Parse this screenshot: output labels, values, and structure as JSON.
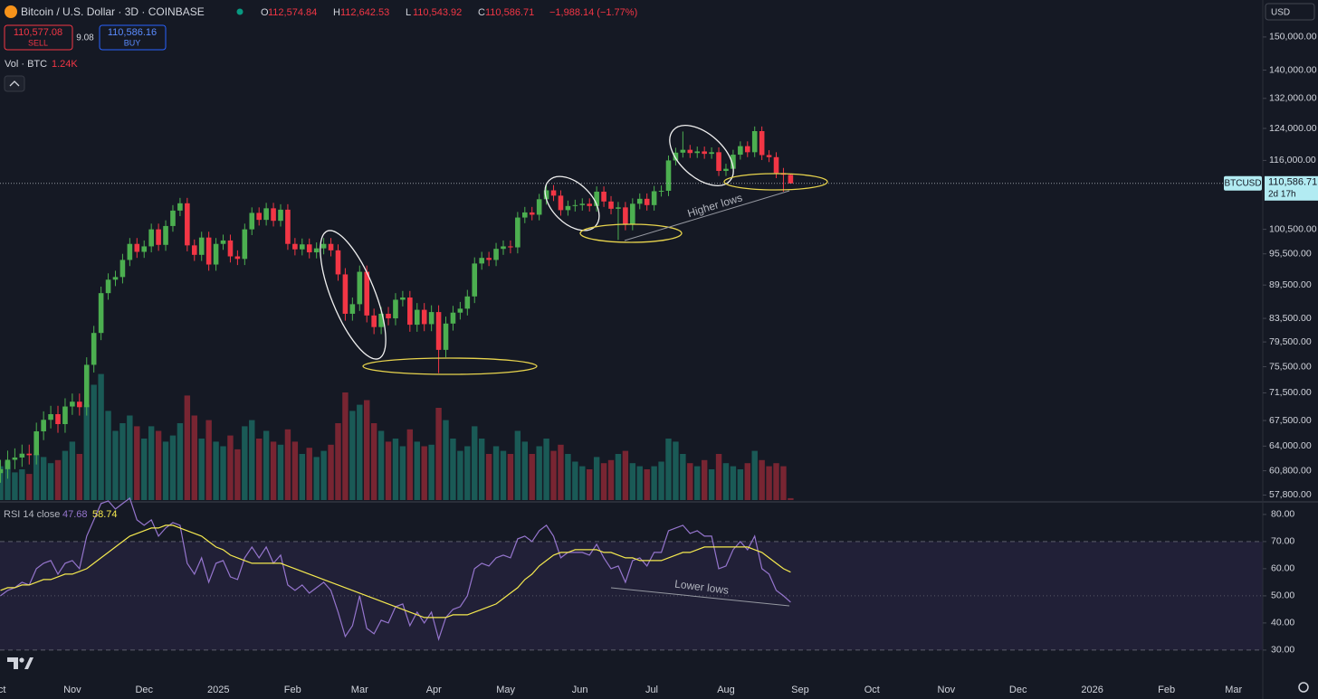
{
  "header": {
    "symbol": "Bitcoin / U.S. Dollar · 3D · COINBASE",
    "ohlc": [
      {
        "key": "O",
        "label": "112,574.84"
      },
      {
        "key": "H",
        "label": "112,642.53"
      },
      {
        "key": "L",
        "label": "110,543.92"
      },
      {
        "key": "C",
        "label": "110,586.71"
      }
    ],
    "change": "−1,988.14 (−1.77%)",
    "sell": {
      "price": "110,577.08",
      "label": "SELL"
    },
    "spread": "9.08",
    "buy": {
      "price": "110,586.16",
      "label": "BUY"
    },
    "currency": "USD",
    "ticker_tag": "BTCUSD",
    "countdown": "2d 17h"
  },
  "chart_data": {
    "type": "candlestick",
    "log_scale": true,
    "x": [
      1,
      4,
      7,
      10,
      13,
      16,
      19,
      22,
      25,
      28,
      31,
      34,
      37,
      40,
      43,
      46,
      49,
      52,
      55,
      58,
      61,
      64,
      67,
      70,
      73,
      76,
      79,
      82,
      85,
      88,
      91,
      94,
      97,
      100,
      103,
      106,
      109,
      112,
      115,
      118,
      121,
      124,
      127,
      130,
      133,
      136,
      139,
      142,
      145,
      148,
      151,
      154,
      157,
      160,
      163,
      166,
      169,
      172,
      175,
      178,
      181,
      184,
      187,
      190,
      193,
      196,
      199,
      202,
      205,
      208,
      211,
      214,
      217,
      220,
      223,
      226,
      229,
      232,
      235,
      238,
      241,
      244,
      247,
      250,
      253,
      256,
      259,
      262,
      265,
      268,
      271,
      274,
      277,
      280,
      283,
      286,
      289,
      292,
      295,
      298,
      301,
      304,
      307,
      310,
      313,
      316,
      319,
      322,
      325,
      328,
      331
    ],
    "open": [
      60500,
      61000,
      62200,
      62500,
      63000,
      62800,
      66000,
      67600,
      68400,
      67000,
      69500,
      70200,
      69400,
      75800,
      81000,
      88000,
      90500,
      91000,
      94300,
      97500,
      95900,
      97000,
      100500,
      97300,
      101200,
      104500,
      106100,
      97200,
      95300,
      98800,
      93400,
      97500,
      98200,
      95000,
      94500,
      100500,
      104000,
      102500,
      105000,
      102300,
      104700,
      97500,
      96400,
      97400,
      95800,
      96600,
      97500,
      96200,
      91500,
      84300,
      86000,
      92000,
      84000,
      82000,
      84300,
      83500,
      86800,
      87200,
      82400,
      85000,
      82500,
      84600,
      78200,
      82600,
      84500,
      85200,
      87400,
      93600,
      94700,
      94300,
      96500,
      97000,
      96800,
      103000,
      104100,
      103600,
      107000,
      109000,
      107800,
      104600,
      105500,
      105700,
      106000,
      105500,
      108700,
      106500,
      104900,
      105200,
      101500,
      106000,
      107100,
      105700,
      108800,
      108900,
      116000,
      117900,
      118600,
      117800,
      118200,
      117600,
      118000,
      113500,
      114000,
      117400,
      119500,
      118000,
      123300,
      117300,
      116800,
      113000,
      112574.84
    ],
    "high": [
      62200,
      63400,
      63700,
      64200,
      64200,
      67200,
      68800,
      69600,
      69600,
      70700,
      71400,
      71400,
      77000,
      82200,
      89200,
      91700,
      92200,
      95500,
      98700,
      98700,
      98200,
      101700,
      101700,
      102400,
      105700,
      107300,
      107300,
      98400,
      100000,
      100000,
      98700,
      99400,
      99400,
      96200,
      101700,
      105200,
      105200,
      106200,
      106200,
      105900,
      105900,
      98700,
      98600,
      98600,
      97800,
      98700,
      98700,
      97400,
      92700,
      87200,
      93200,
      93200,
      85200,
      85500,
      85500,
      88000,
      88400,
      88400,
      86200,
      86200,
      85800,
      85800,
      83800,
      85700,
      86400,
      88600,
      94800,
      95900,
      95900,
      97700,
      98200,
      98200,
      104200,
      105300,
      105300,
      108200,
      110200,
      110200,
      109000,
      106700,
      106900,
      107200,
      107200,
      109900,
      109900,
      107700,
      106400,
      106400,
      107200,
      108300,
      108300,
      110000,
      110100,
      117200,
      119100,
      123200,
      119800,
      119400,
      119400,
      119200,
      119200,
      115200,
      118600,
      120700,
      120700,
      124500,
      124500,
      118500,
      118000,
      114200,
      112642.53
    ],
    "low": [
      59300,
      59800,
      61000,
      61300,
      61600,
      61600,
      64800,
      66400,
      65800,
      65800,
      68300,
      68200,
      68200,
      74600,
      79800,
      86800,
      89300,
      89800,
      93100,
      94700,
      94700,
      95800,
      96100,
      96100,
      100000,
      103300,
      96000,
      94100,
      94100,
      92200,
      92200,
      96300,
      93800,
      93300,
      93300,
      99300,
      101300,
      101300,
      101100,
      101100,
      96300,
      95200,
      95200,
      94600,
      94600,
      95400,
      95000,
      90300,
      83100,
      83100,
      84800,
      82800,
      80800,
      80800,
      82300,
      82300,
      85600,
      81200,
      81200,
      81300,
      81300,
      74500,
      77000,
      81400,
      83300,
      84000,
      86200,
      92400,
      93100,
      93100,
      95300,
      95600,
      95600,
      101800,
      102400,
      102400,
      105800,
      106600,
      103400,
      103400,
      104300,
      104500,
      104300,
      104300,
      105300,
      103700,
      98300,
      100300,
      100300,
      104800,
      104500,
      104500,
      107600,
      107700,
      114800,
      116700,
      116600,
      116600,
      116400,
      116400,
      112300,
      112300,
      112800,
      116200,
      116800,
      116800,
      116100,
      115600,
      111800,
      108700,
      110543.92
    ],
    "close": [
      61000,
      62200,
      62500,
      63000,
      62800,
      66000,
      67600,
      68400,
      67000,
      69500,
      70200,
      69400,
      75800,
      81000,
      88000,
      90500,
      91000,
      94300,
      97500,
      95900,
      97000,
      100500,
      97300,
      101200,
      104500,
      106100,
      97200,
      95300,
      98800,
      93400,
      97500,
      98200,
      95000,
      94500,
      100500,
      104000,
      102500,
      105000,
      102300,
      104700,
      97500,
      96400,
      97400,
      95800,
      96600,
      97500,
      96200,
      91500,
      84300,
      86000,
      92000,
      84000,
      82000,
      84300,
      83500,
      86800,
      87200,
      82400,
      85000,
      82500,
      84600,
      78200,
      82600,
      84500,
      85200,
      87400,
      93600,
      94700,
      94300,
      96500,
      97000,
      96800,
      103000,
      104100,
      103600,
      107000,
      109000,
      107800,
      104600,
      105500,
      105700,
      106000,
      105500,
      108700,
      106500,
      104900,
      105200,
      101500,
      106000,
      107100,
      105700,
      108800,
      108900,
      116000,
      117900,
      118600,
      117800,
      118200,
      117600,
      118000,
      113500,
      114000,
      117400,
      119500,
      118000,
      123300,
      117300,
      116800,
      113000,
      112600,
      110586.71
    ],
    "last_price_label": "110,586.71",
    "up_color": "#4caf50",
    "down_color": "#f23645",
    "xlim": [
      0.8,
      528.2
    ],
    "xticks": [
      {
        "value": 0,
        "label": "Oct"
      },
      {
        "value": 31,
        "label": "Nov"
      },
      {
        "value": 61,
        "label": "Dec"
      },
      {
        "value": 92,
        "label": "2025"
      },
      {
        "value": 123,
        "label": "Feb"
      },
      {
        "value": 151,
        "label": "Mar"
      },
      {
        "value": 182,
        "label": "Apr"
      },
      {
        "value": 212,
        "label": "May"
      },
      {
        "value": 243,
        "label": "Jun"
      },
      {
        "value": 273,
        "label": "Jul"
      },
      {
        "value": 304,
        "label": "Aug"
      },
      {
        "value": 335,
        "label": "Sep"
      },
      {
        "value": 365,
        "label": "Oct"
      },
      {
        "value": 396,
        "label": "Nov"
      },
      {
        "value": 426,
        "label": "Dec"
      },
      {
        "value": 457,
        "label": "2026"
      },
      {
        "value": 488,
        "label": "Feb"
      },
      {
        "value": 516,
        "label": "Mar"
      }
    ],
    "ylim": [
      57200,
      162000
    ],
    "yticks": [
      {
        "value": 150000,
        "label": "150,000.00"
      },
      {
        "value": 140000,
        "label": "140,000.00"
      },
      {
        "value": 132000,
        "label": "132,000.00"
      },
      {
        "value": 124000,
        "label": "124,000.00"
      },
      {
        "value": 116000,
        "label": "116,000.00"
      },
      {
        "value": 100500,
        "label": "100,500.00"
      },
      {
        "value": 95500,
        "label": "95,500.00"
      },
      {
        "value": 89500,
        "label": "89,500.00"
      },
      {
        "value": 83500,
        "label": "83,500.00"
      },
      {
        "value": 79500,
        "label": "79,500.00"
      },
      {
        "value": 75500,
        "label": "75,500.00"
      },
      {
        "value": 71500,
        "label": "71,500.00"
      },
      {
        "value": 67500,
        "label": "67,500.00"
      },
      {
        "value": 64000,
        "label": "64,000.00"
      },
      {
        "value": 60800,
        "label": "60,800.00"
      },
      {
        "value": 57800,
        "label": "57,800.00"
      }
    ],
    "annotations": [
      "Higher lows",
      "Lower lows"
    ],
    "volume": {
      "name": "Vol · BTC",
      "value_label": "1.24K",
      "ylim": [
        0,
        100000
      ],
      "values": [
        22000,
        25000,
        18000,
        20000,
        17000,
        30000,
        28000,
        24000,
        26000,
        32000,
        38000,
        30000,
        62000,
        75000,
        82000,
        58000,
        45000,
        50000,
        55000,
        48000,
        40000,
        48000,
        45000,
        38000,
        42000,
        50000,
        68000,
        55000,
        40000,
        52000,
        38000,
        35000,
        42000,
        33000,
        48000,
        52000,
        40000,
        45000,
        38000,
        36000,
        46000,
        38000,
        30000,
        34000,
        28000,
        32000,
        36000,
        50000,
        70000,
        58000,
        62000,
        65000,
        50000,
        45000,
        38000,
        40000,
        35000,
        46000,
        38000,
        35000,
        36000,
        60000,
        52000,
        40000,
        32000,
        35000,
        48000,
        40000,
        30000,
        35000,
        32000,
        30000,
        45000,
        38000,
        30000,
        35000,
        40000,
        32000,
        36000,
        30000,
        25000,
        22000,
        20000,
        28000,
        24000,
        26000,
        30000,
        32000,
        24000,
        22000,
        20000,
        22000,
        25000,
        40000,
        38000,
        30000,
        24000,
        22000,
        26000,
        20000,
        30000,
        24000,
        22000,
        20000,
        24000,
        32000,
        26000,
        22000,
        24000,
        22000,
        1240
      ]
    },
    "rsi": {
      "name": "RSI 14 close",
      "ylim": [
        21.3,
        84.3
      ],
      "band": [
        30,
        70
      ],
      "mid": 50,
      "yticks": [
        {
          "value": 80,
          "label": "80.00"
        },
        {
          "value": 70,
          "label": "70.00"
        },
        {
          "value": 60,
          "label": "60.00"
        },
        {
          "value": 50,
          "label": "50.00"
        },
        {
          "value": 40,
          "label": "40.00"
        },
        {
          "value": 30,
          "label": "30.00"
        }
      ],
      "series": [
        {
          "color": "#9575cd",
          "values": [
            50,
            52,
            53,
            55,
            54,
            60,
            62,
            63,
            58,
            62,
            63,
            60,
            72,
            78,
            84,
            85,
            82,
            84,
            86,
            78,
            76,
            78,
            72,
            75,
            77,
            76,
            62,
            58,
            64,
            55,
            62,
            63,
            57,
            56,
            64,
            68,
            64,
            68,
            62,
            65,
            54,
            52,
            54,
            51,
            53,
            55,
            52,
            44,
            35,
            39,
            50,
            38,
            36,
            41,
            40,
            46,
            47,
            39,
            44,
            40,
            44,
            34,
            42,
            45,
            46,
            50,
            60,
            62,
            61,
            64,
            65,
            64,
            71,
            72,
            70,
            74,
            76,
            72,
            64,
            66,
            66,
            66,
            65,
            69,
            64,
            60,
            61,
            55,
            63,
            64,
            61,
            66,
            66,
            74,
            75,
            76,
            73,
            74,
            72,
            72,
            60,
            61,
            67,
            70,
            67,
            72,
            60,
            58,
            52,
            50,
            47.68
          ]
        },
        {
          "color": "#f5e94f",
          "values": [
            52,
            53,
            53,
            54,
            54,
            55,
            56,
            56,
            57,
            58,
            58,
            59,
            60,
            62,
            64,
            66,
            68,
            70,
            72,
            73,
            74,
            75,
            75,
            76,
            76,
            75,
            74,
            73,
            72,
            70,
            68,
            67,
            65,
            64,
            63,
            62,
            62,
            62,
            62,
            62,
            61,
            60,
            59,
            58,
            57,
            56,
            55,
            54,
            53,
            52,
            51,
            50,
            49,
            48,
            47,
            46,
            45,
            44,
            43,
            42,
            42,
            42,
            42,
            43,
            43,
            43,
            44,
            45,
            46,
            47,
            49,
            51,
            53,
            56,
            58,
            61,
            63,
            65,
            66,
            66,
            67,
            67,
            67,
            67,
            66,
            66,
            65,
            64,
            64,
            63,
            63,
            63,
            63,
            64,
            65,
            66,
            66,
            67,
            68,
            68,
            68,
            68,
            68,
            68,
            68,
            67,
            66,
            64,
            62,
            60,
            58.74
          ]
        }
      ]
    }
  }
}
